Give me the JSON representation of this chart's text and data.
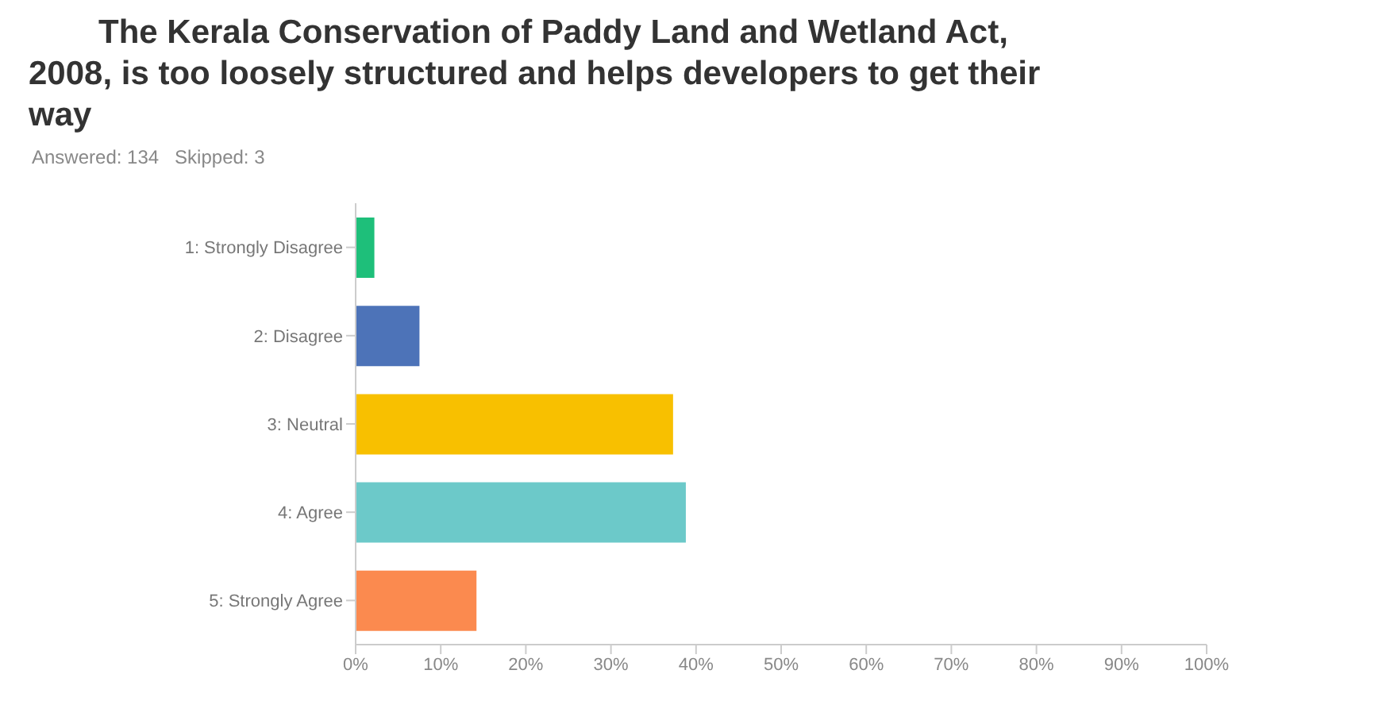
{
  "chart_data": {
    "type": "bar",
    "orientation": "horizontal",
    "title": "The Kerala Conservation of Paddy Land and Wetland Act, 2008, is too loosely structured and helps developers to get their way",
    "subtitle": "Answered: 134   Skipped: 3",
    "categories": [
      "1: Strongly Disagree",
      "2: Disagree",
      "3: Neutral",
      "4: Agree",
      "5: Strongly Agree"
    ],
    "values": [
      2.2,
      7.5,
      37.3,
      38.8,
      14.2
    ],
    "colors": [
      "#1ebf7a",
      "#4d73b8",
      "#f8c000",
      "#6cc9c9",
      "#fb8a4f"
    ],
    "xlim": [
      0,
      100
    ],
    "xticks": [
      {
        "value": 0,
        "label": "0%"
      },
      {
        "value": 10,
        "label": "10%"
      },
      {
        "value": 20,
        "label": "20%"
      },
      {
        "value": 30,
        "label": "30%"
      },
      {
        "value": 40,
        "label": "40%"
      },
      {
        "value": 50,
        "label": "50%"
      },
      {
        "value": 60,
        "label": "60%"
      },
      {
        "value": 70,
        "label": "70%"
      },
      {
        "value": 80,
        "label": "80%"
      },
      {
        "value": 90,
        "label": "90%"
      },
      {
        "value": 100,
        "label": "100%"
      }
    ],
    "grid": false,
    "legend": false
  }
}
